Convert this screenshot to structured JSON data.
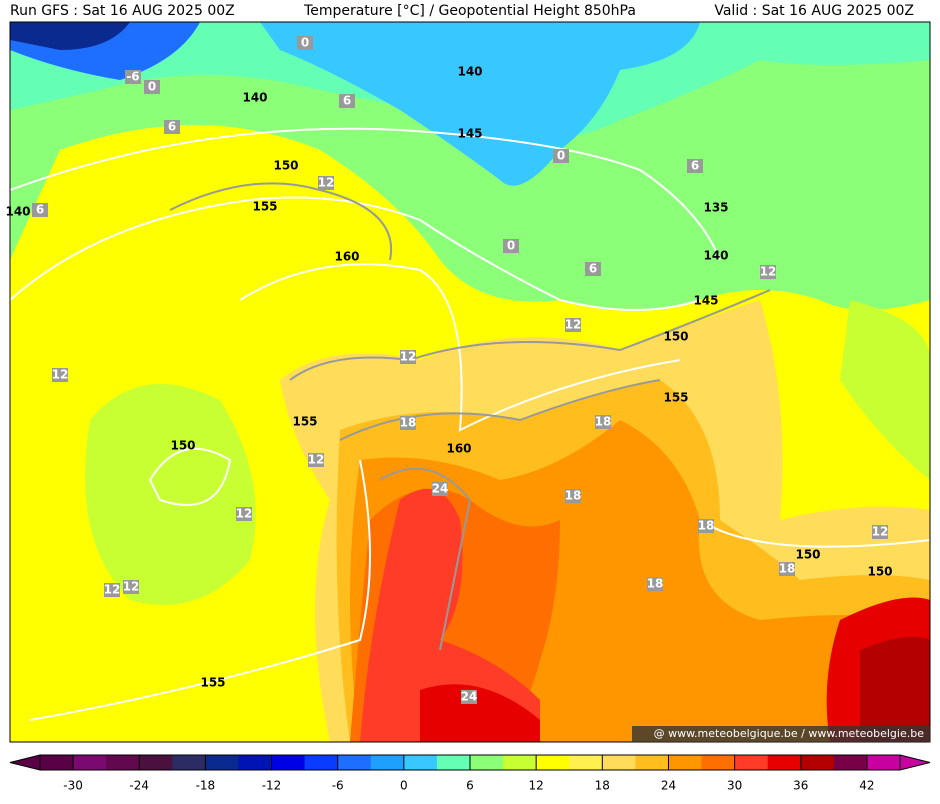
{
  "header": {
    "left": "Run GFS : Sat 16 AUG 2025 00Z",
    "center": "Temperature [°C] / Geopotential Height 850hPa",
    "right": "Valid : Sat 16 AUG 2025 00Z"
  },
  "height_labels": [
    "140",
    "140",
    "140",
    "140",
    "145",
    "145",
    "150",
    "150",
    "150",
    "150",
    "150",
    "155",
    "155",
    "155",
    "155",
    "160",
    "160",
    "135"
  ],
  "temp_labels": [
    "0",
    "0",
    "0",
    "0",
    "-6",
    "6",
    "6",
    "6",
    "6",
    "6",
    "12",
    "12",
    "12",
    "12",
    "12",
    "12",
    "12",
    "12",
    "12",
    "12",
    "18",
    "18",
    "18",
    "18",
    "18",
    "18",
    "24",
    "24"
  ],
  "watermark": "@ www.meteobelgique.be / www.meteobelgie.be",
  "colorbar": {
    "ticks": [
      -30,
      -24,
      -18,
      -12,
      -6,
      0,
      6,
      12,
      18,
      24,
      30,
      36,
      42
    ],
    "lim": [
      -33,
      45
    ],
    "colors": [
      "#5a0046",
      "#7a0a70",
      "#62084e",
      "#4a103e",
      "#2c2c64",
      "#0a2a90",
      "#0014b4",
      "#0000e6",
      "#0a3cff",
      "#1e6eff",
      "#1ea0ff",
      "#36c8ff",
      "#64ffb4",
      "#8cff78",
      "#c8ff32",
      "#ffff00",
      "#fff050",
      "#ffdc5a",
      "#ffbe1e",
      "#ff9600",
      "#ff6e00",
      "#ff3c28",
      "#e60000",
      "#b40000",
      "#780046",
      "#c800a0"
    ]
  }
}
